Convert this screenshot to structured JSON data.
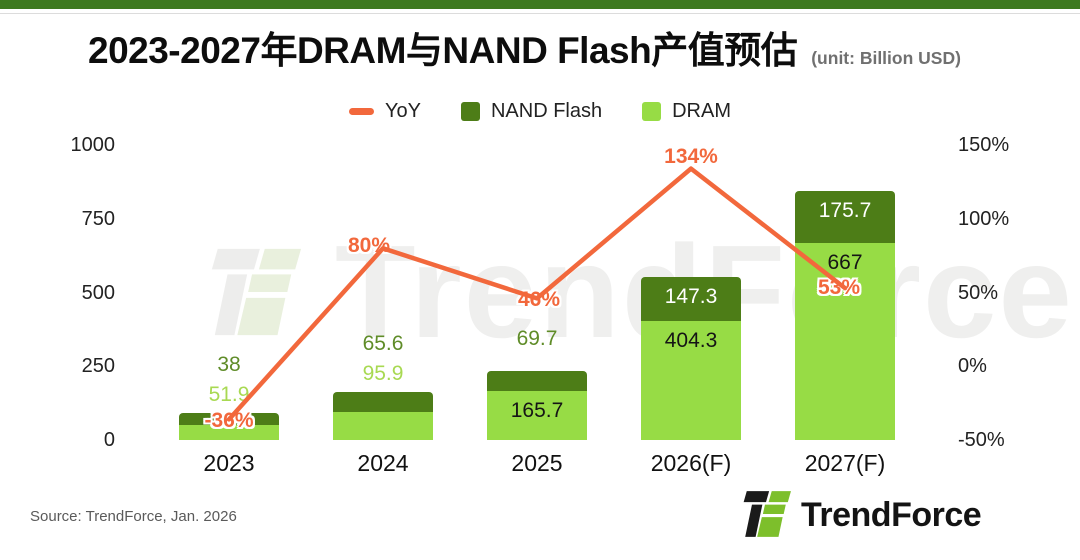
{
  "header": {
    "title": "2023-2027年DRAM与NAND Flash产值预估",
    "unit_note": "(unit: Billion USD)"
  },
  "legend": [
    {
      "label": "YoY",
      "swatch": "line",
      "color": "#f2683c"
    },
    {
      "label": "NAND Flash",
      "swatch": "square",
      "color": "#4d7d17"
    },
    {
      "label": "DRAM",
      "swatch": "square",
      "color": "#97dc45"
    }
  ],
  "chart_data": {
    "type": "bar",
    "subtype": "stacked-bar-with-line",
    "title": "2023-2027年DRAM与NAND Flash产值预估",
    "unit": "Billion USD",
    "categories": [
      "2023",
      "2024",
      "2025",
      "2026(F)",
      "2027(F)"
    ],
    "series": [
      {
        "name": "DRAM",
        "type": "bar",
        "stack": true,
        "color": "#97dc45",
        "values": [
          51.9,
          95.9,
          165.7,
          404.3,
          667
        ]
      },
      {
        "name": "NAND Flash",
        "type": "bar",
        "stack": true,
        "color": "#4d7d17",
        "values": [
          38,
          65.6,
          69.7,
          147.3,
          175.7
        ]
      },
      {
        "name": "YoY",
        "type": "line",
        "axis": "right",
        "color": "#f2683c",
        "values_pct": [
          -36,
          80,
          46,
          134,
          53
        ],
        "point_labels": [
          "-36%",
          "80%",
          "46%",
          "134%",
          "53%"
        ]
      }
    ],
    "left_axis": {
      "ticks": [
        0,
        250,
        500,
        750,
        1000
      ],
      "min": 0,
      "max": 1000
    },
    "right_axis": {
      "ticks_pct": [
        -50,
        0,
        50,
        100,
        150
      ],
      "min": -50,
      "max": 150
    },
    "grid": false,
    "legend_position": "top-center",
    "label_colors": {
      "nand_outside": "#5f8c28",
      "dram_outside": "#a8d952",
      "nand_inside": "#ffffff",
      "dram_inside": "#151515"
    }
  },
  "colors": {
    "top_banner": "#3e7a1f",
    "yoy_line": "#f2683c",
    "nand_green": "#4d7d17",
    "dram_green": "#97dc45",
    "logo_black": "#1a1a1a",
    "logo_green": "#7dbf2b",
    "watermark_gray": "#ededec",
    "watermark_green": "#e9f0dd"
  },
  "watermark": {
    "text": "TrendForce"
  },
  "footer": {
    "source": "Source: TrendForce, Jan. 2026",
    "logo_text": "TrendForce"
  }
}
